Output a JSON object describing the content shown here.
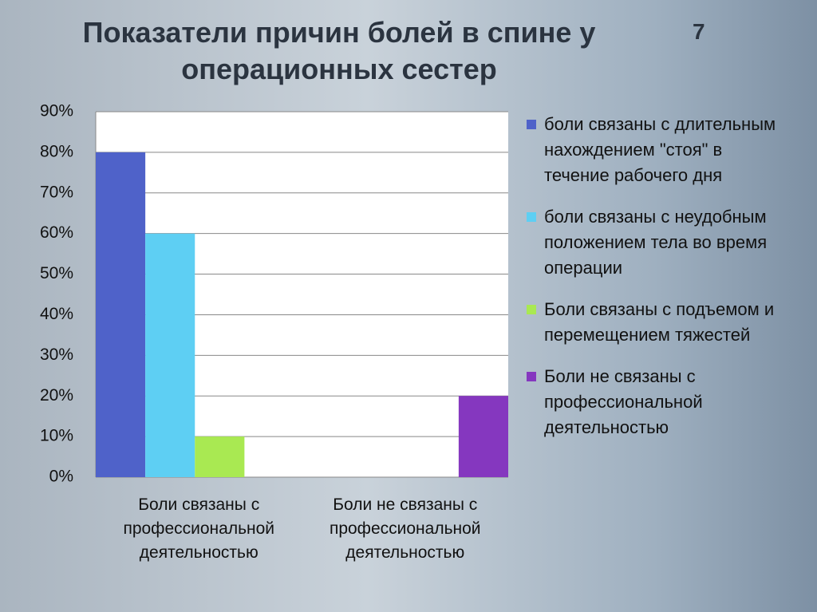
{
  "slide_number": "7",
  "chart_data": {
    "type": "bar",
    "title": "Показатели причин болей в спине у операционных сестер",
    "categories": [
      "Боли связаны с профессиональной деятельностью",
      "Боли не связаны с профессиональной деятельностью"
    ],
    "series": [
      {
        "name": "боли связаны с длительным нахождением \"стоя\" в течение рабочего дня",
        "color": "#4f62c9",
        "values": [
          80,
          null
        ]
      },
      {
        "name": "боли связаны с неудобным положением тела во время операции",
        "color": "#5ecff3",
        "values": [
          60,
          null
        ]
      },
      {
        "name": "Боли связаны с подъемом и перемещением тяжестей",
        "color": "#a9e952",
        "values": [
          10,
          null
        ]
      },
      {
        "name": "Боли не связаны с профессиональной деятельностью",
        "color": "#8537bf",
        "values": [
          null,
          20
        ]
      }
    ],
    "ylim": [
      0,
      90
    ],
    "yticks": [
      {
        "value": 0,
        "label": "0%"
      },
      {
        "value": 10,
        "label": "10%"
      },
      {
        "value": 20,
        "label": "20%"
      },
      {
        "value": 30,
        "label": "30%"
      },
      {
        "value": 40,
        "label": "40%"
      },
      {
        "value": 50,
        "label": "50%"
      },
      {
        "value": 60,
        "label": "60%"
      },
      {
        "value": 70,
        "label": "70%"
      },
      {
        "value": 80,
        "label": "80%"
      },
      {
        "value": 90,
        "label": "90%"
      }
    ],
    "grid": true
  }
}
